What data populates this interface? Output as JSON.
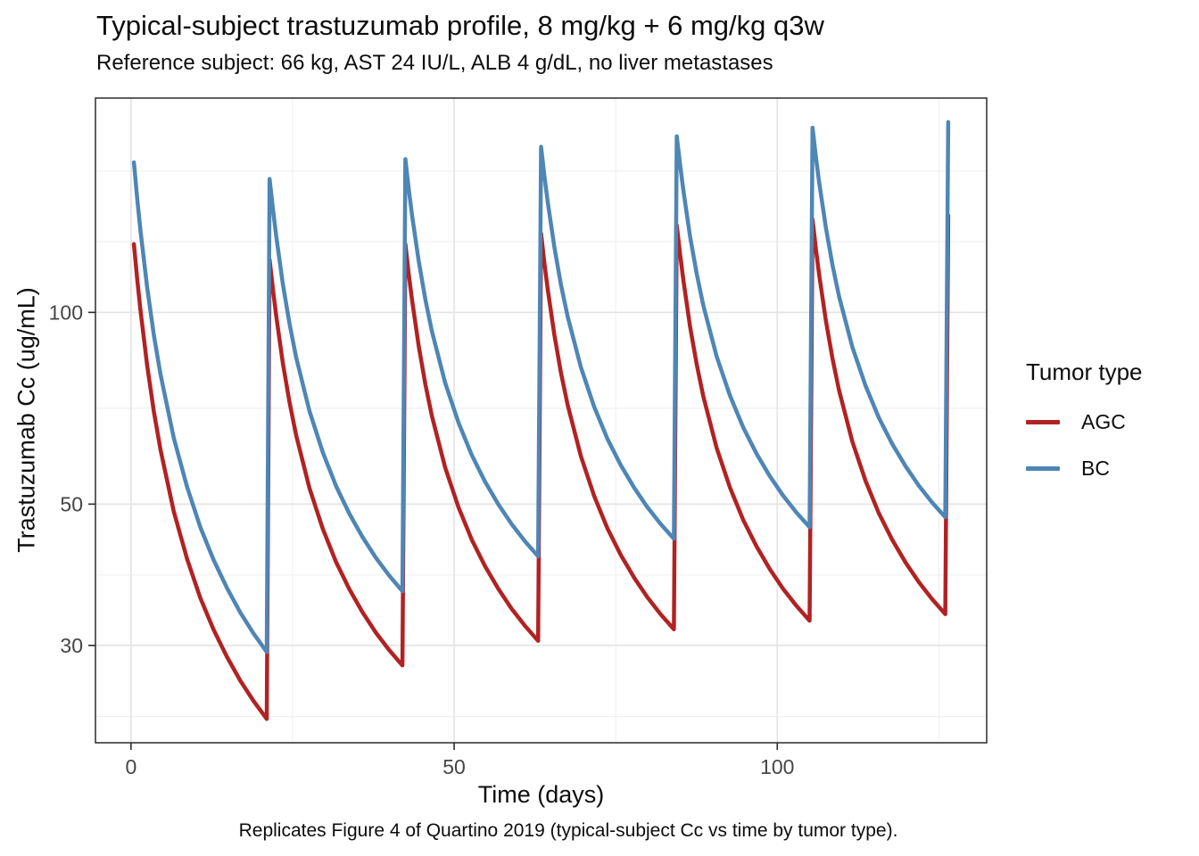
{
  "chart_data": {
    "type": "line",
    "title": "Typical-subject trastuzumab profile, 8 mg/kg + 6 mg/kg q3w",
    "subtitle": "Reference subject: 66 kg, AST 24 IU/L, ALB 4 g/dL, no liver metastases",
    "caption": "Replicates Figure 4 of Quartino 2019 (typical-subject Cc vs time by tumor type).",
    "xlabel": "Time (days)",
    "ylabel": "Trastuzumab Cc (ug/mL)",
    "x_ticks": [
      0,
      50,
      100
    ],
    "x_minor_gridlines": [
      25,
      75,
      125
    ],
    "x_range": [
      -5.5,
      132.4
    ],
    "y_scale": "log10",
    "y_ticks": [
      30,
      50,
      100
    ],
    "y_minor_gridlines": [
      23.2,
      38.7,
      70.7,
      129.2,
      166.7
    ],
    "y_range": [
      21.1,
      217.0
    ],
    "grid": true,
    "legend": {
      "title": "Tumor type",
      "position": "right"
    },
    "dosing_interval_days": 21,
    "dose_days": [
      0,
      21,
      42,
      63,
      84,
      105,
      126
    ],
    "peak_offset_days": 0.45,
    "series": [
      {
        "name": "AGC",
        "color": "#B22222",
        "peaks": [
          128,
          121,
          128,
          133,
          137,
          140,
          142
        ],
        "troughs": [
          23.0,
          27.9,
          30.5,
          31.8,
          32.8,
          33.6
        ]
      },
      {
        "name": "BC",
        "color": "#4E86B5",
        "peaks": [
          172,
          162,
          174,
          182,
          189,
          195,
          199
        ],
        "troughs": [
          29.3,
          36.5,
          41.4,
          44.1,
          46.0,
          47.7
        ]
      }
    ],
    "decay_shape_u": [
      0,
      0.025,
      0.05,
      0.1,
      0.15,
      0.2,
      0.3,
      0.4,
      0.5,
      0.6,
      0.7,
      0.8,
      0.9,
      1
    ],
    "decay_shape_f": [
      1,
      0.926,
      0.86,
      0.744,
      0.648,
      0.567,
      0.437,
      0.337,
      0.255,
      0.188,
      0.131,
      0.081,
      0.038,
      0
    ]
  }
}
